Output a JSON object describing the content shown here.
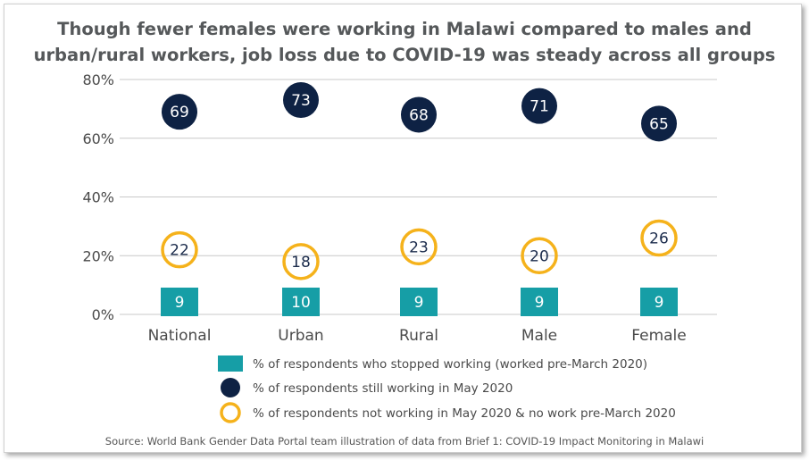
{
  "chart_data": {
    "type": "scatter",
    "title_lines": [
      "Though fewer females were working in Malawi compared to males and",
      "urban/rural workers, job loss due to COVID-19 was steady across all groups"
    ],
    "categories": [
      "National",
      "Urban",
      "Rural",
      "Male",
      "Female"
    ],
    "y_ticks": [
      "0%",
      "20%",
      "40%",
      "60%",
      "80%"
    ],
    "ylim": [
      0,
      80
    ],
    "series": [
      {
        "name": "% of respondents who stopped working (worked pre-March 2020)",
        "marker": "bar",
        "color": "#169ea6",
        "values": [
          9,
          10,
          9,
          9,
          9
        ]
      },
      {
        "name": "% of respondents still working in May 2020",
        "marker": "dot",
        "color": "#0e2244",
        "values": [
          69,
          73,
          68,
          71,
          65
        ]
      },
      {
        "name": "% of respondents not working in May 2020 & no work pre-March 2020",
        "marker": "ring",
        "color": "#f5b21b",
        "values": [
          22,
          18,
          23,
          20,
          26
        ]
      }
    ],
    "source": "Source:  World Bank Gender  Data  Portal  team  illustration  of  data  from  Brief  1:  COVID-19  Impact  Monitoring  in  Malawi",
    "grid": true,
    "legend_position": "bottom"
  }
}
